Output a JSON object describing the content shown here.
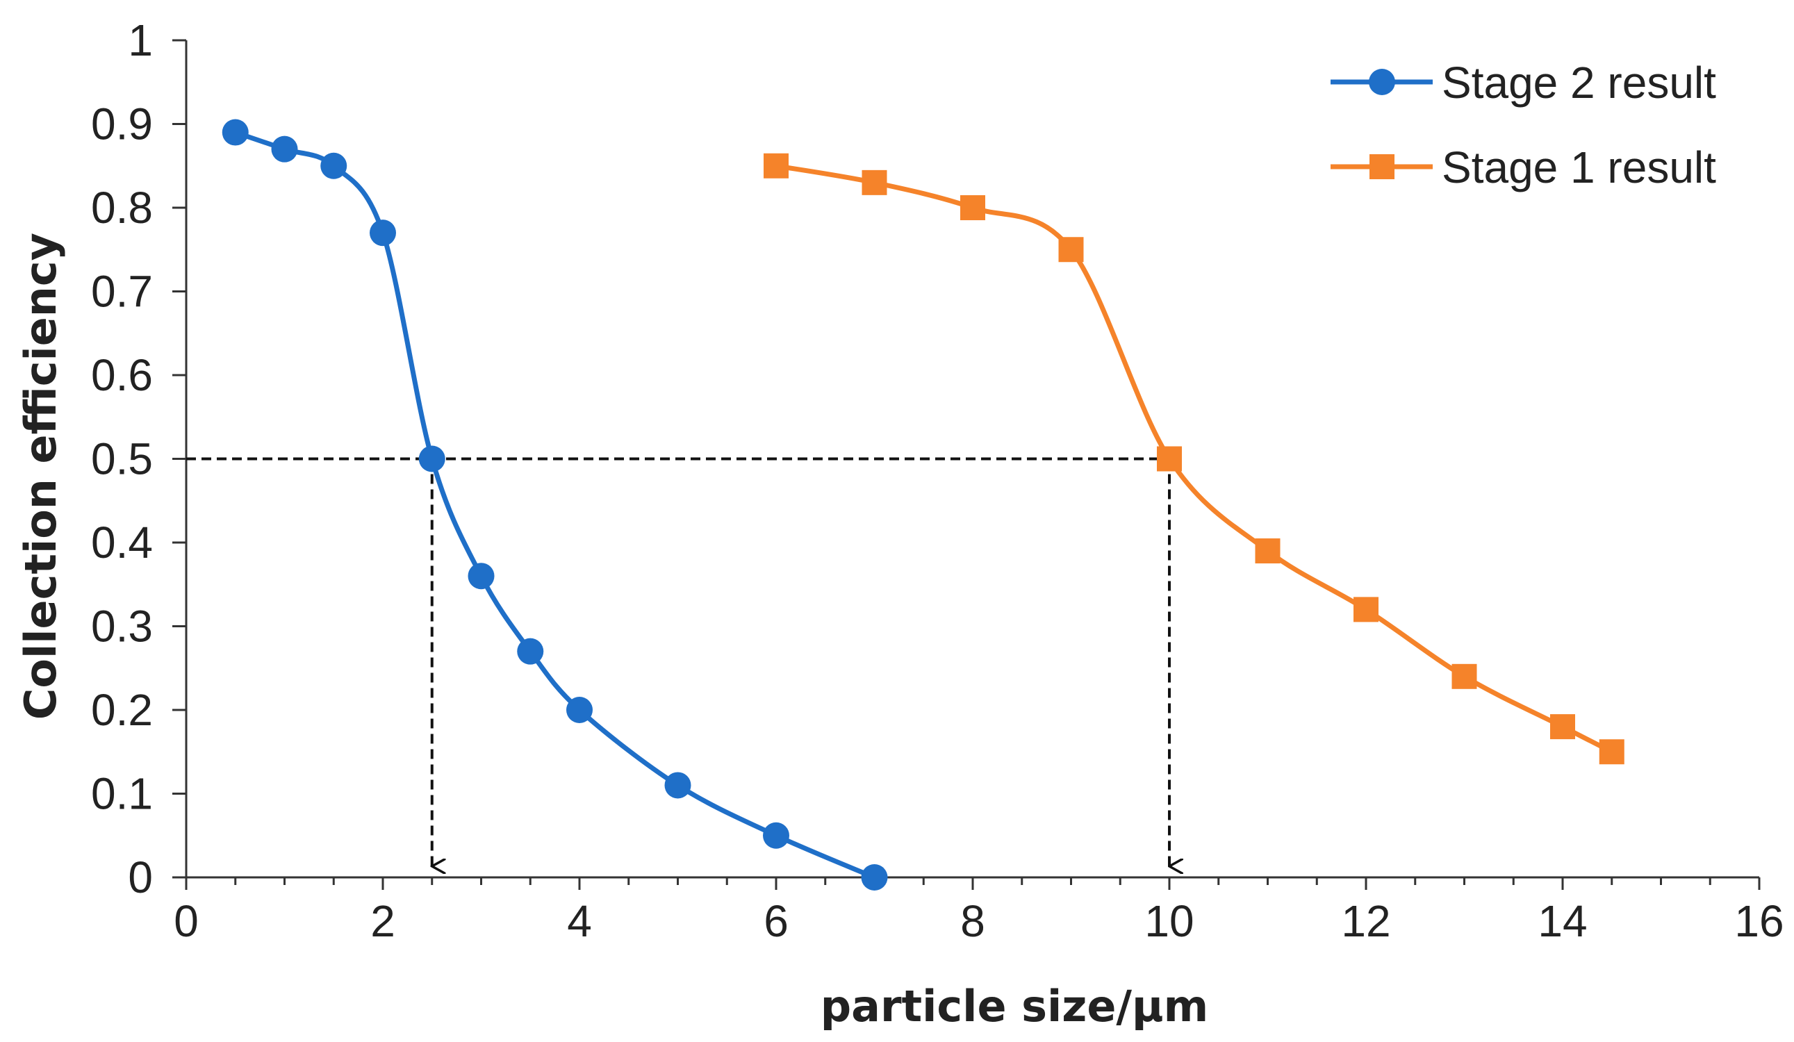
{
  "chart_data": {
    "type": "line",
    "title": "",
    "xlabel": "particle size/μm",
    "ylabel": "Collection efficiency",
    "xlim": [
      0,
      16
    ],
    "ylim": [
      0,
      1
    ],
    "x_ticks": [
      0,
      2,
      4,
      6,
      8,
      10,
      12,
      14,
      16
    ],
    "x_tick_labels": [
      "0",
      "2",
      "4",
      "6",
      "8",
      "10",
      "12",
      "14",
      "16"
    ],
    "x_minor_step": 0.5,
    "y_ticks": [
      0,
      0.1,
      0.2,
      0.3,
      0.4,
      0.5,
      0.6,
      0.7,
      0.8,
      0.9,
      1
    ],
    "y_tick_labels": [
      "0",
      "0.1",
      "0.2",
      "0.3",
      "0.4",
      "0.5",
      "0.6",
      "0.7",
      "0.8",
      "0.9",
      "1"
    ],
    "grid": false,
    "legend_position": "top-right",
    "series": [
      {
        "name": "Stage 2 result",
        "color": "#1f6fc8",
        "marker": "circle",
        "x": [
          0.5,
          1,
          1.5,
          2,
          2.5,
          3,
          3.5,
          4,
          5,
          6,
          7
        ],
        "y": [
          0.89,
          0.87,
          0.85,
          0.77,
          0.5,
          0.36,
          0.27,
          0.2,
          0.11,
          0.05,
          0
        ]
      },
      {
        "name": "Stage 1 result",
        "color": "#f5832a",
        "marker": "square",
        "x": [
          6,
          7,
          8,
          9,
          10,
          11,
          12,
          13,
          14,
          14.5
        ],
        "y": [
          0.85,
          0.83,
          0.8,
          0.75,
          0.5,
          0.39,
          0.32,
          0.24,
          0.18,
          0.15
        ]
      }
    ],
    "annotations": [
      {
        "type": "hline-dashed",
        "y": 0.5,
        "x_from": 0,
        "x_to": 10
      },
      {
        "type": "arrow-down-dashed",
        "x": 2.5,
        "y_from": 0.5,
        "y_to": 0
      },
      {
        "type": "arrow-down-dashed",
        "x": 10,
        "y_from": 0.5,
        "y_to": 0
      }
    ]
  }
}
